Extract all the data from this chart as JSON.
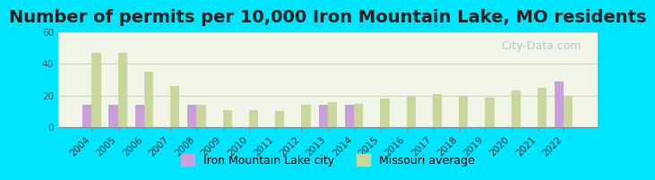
{
  "title": "Number of permits per 10,000 Iron Mountain Lake, MO residents",
  "years": [
    2004,
    2005,
    2006,
    2007,
    2008,
    2009,
    2010,
    2011,
    2012,
    2013,
    2014,
    2015,
    2016,
    2017,
    2018,
    2019,
    2020,
    2021,
    2022
  ],
  "city_values": [
    14,
    14,
    14,
    0,
    14,
    0,
    0,
    0,
    0,
    14,
    14,
    0,
    0,
    0,
    0,
    0,
    0,
    0,
    29
  ],
  "mo_values": [
    47,
    47,
    35,
    26,
    14,
    11,
    11,
    10,
    14,
    16,
    15,
    18,
    20,
    21,
    20,
    19,
    23,
    25,
    20
  ],
  "city_color": "#c9a0dc",
  "mo_color": "#c8d89a",
  "background_outer": "#00e5ff",
  "background_plot": "#f0f5e8",
  "ylim": [
    0,
    60
  ],
  "yticks": [
    0,
    20,
    40,
    60
  ],
  "title_fontsize": 14,
  "tick_fontsize": 7.5,
  "legend_fontsize": 9,
  "bar_width": 0.35,
  "watermark_text": "City-Data.com",
  "watermark_color": "#b0c4c4",
  "grid_color": "#d0d8c8",
  "axis_color": "#888888",
  "legend_labels": [
    "Iron Mountain Lake city",
    "Missouri average"
  ]
}
